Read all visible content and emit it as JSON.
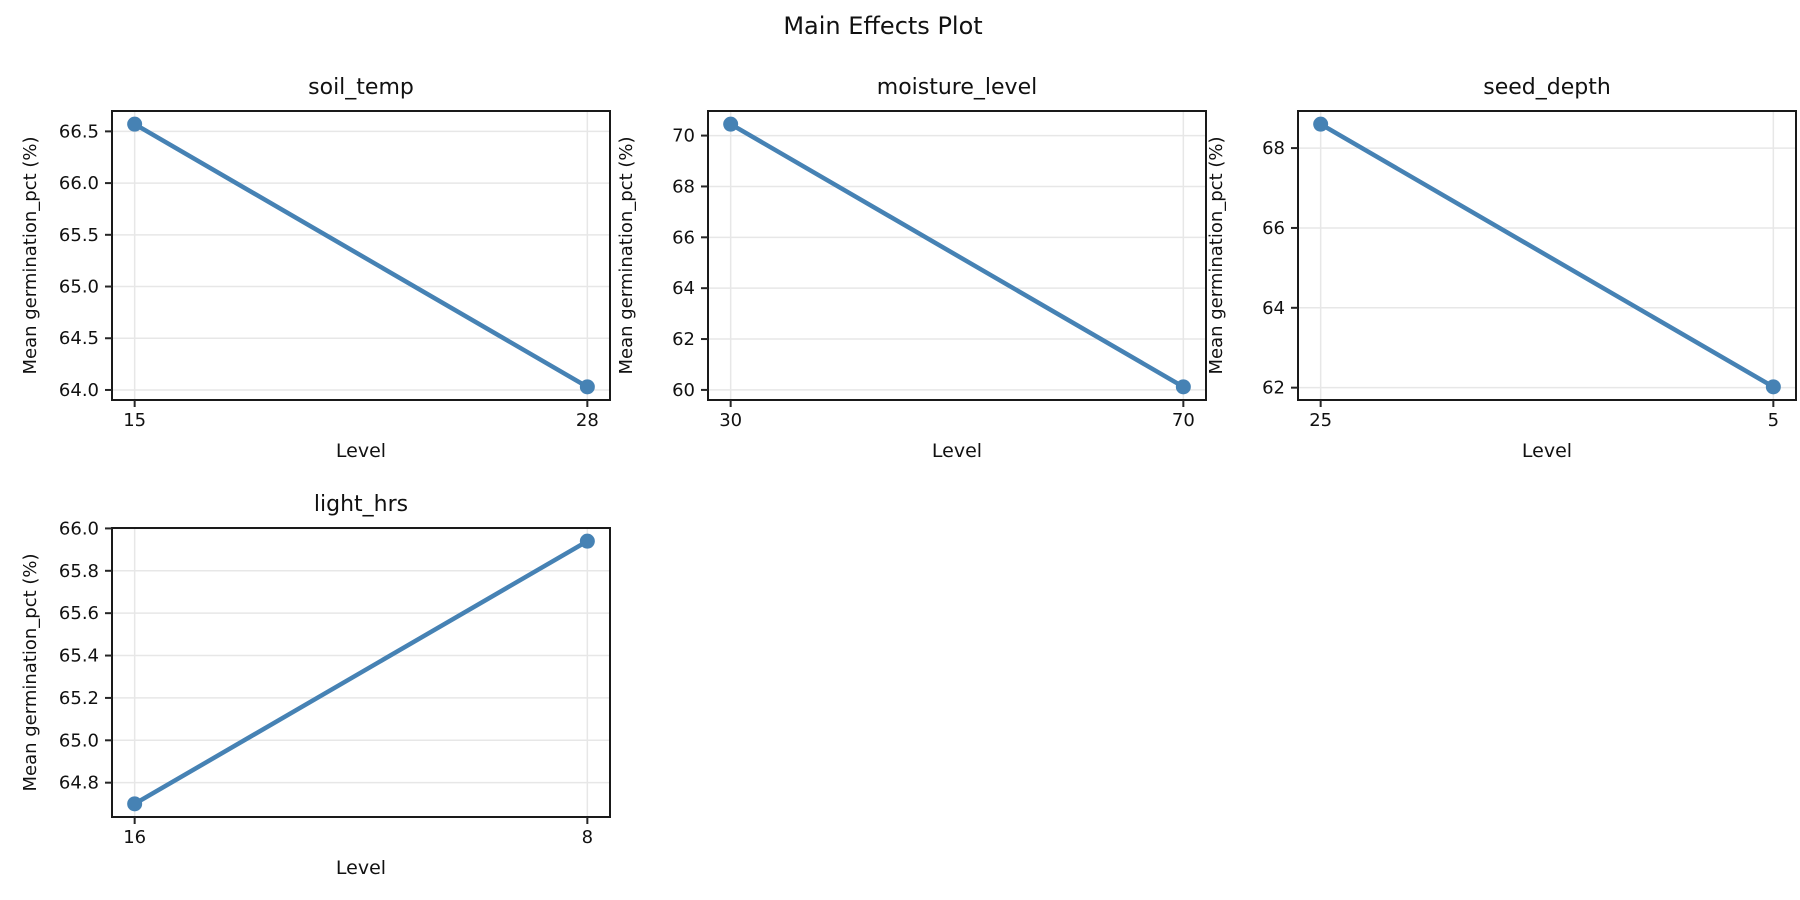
{
  "figure": {
    "suptitle": "Main Effects Plot",
    "colors": {
      "line": "#4682B4",
      "grid": "#e7e7e7",
      "spine": "#1a1a1a",
      "tick": "#262626",
      "text": "#111111",
      "background": "#ffffff"
    }
  },
  "chart_data": [
    {
      "type": "line",
      "title": "soil_temp",
      "xlabel": "Level",
      "ylabel": "Mean germination_pct (%)",
      "categories": [
        "15",
        "28"
      ],
      "values": [
        66.57,
        64.03
      ],
      "yticks": [
        64.0,
        64.5,
        65.0,
        65.5,
        66.0,
        66.5
      ],
      "ytick_labels": [
        "64.0",
        "64.5",
        "65.0",
        "65.5",
        "66.0",
        "66.5"
      ],
      "ylim": [
        63.903,
        66.697
      ],
      "grid": true,
      "legend": null
    },
    {
      "type": "line",
      "title": "moisture_level",
      "xlabel": "Level",
      "ylabel": "Mean germination_pct (%)",
      "categories": [
        "30",
        "70"
      ],
      "values": [
        70.45,
        60.12
      ],
      "yticks": [
        60,
        62,
        64,
        66,
        68,
        70
      ],
      "ytick_labels": [
        "60",
        "62",
        "64",
        "66",
        "68",
        "70"
      ],
      "ylim": [
        59.6035,
        70.9665
      ],
      "grid": true,
      "legend": null
    },
    {
      "type": "line",
      "title": "seed_depth",
      "xlabel": "Level",
      "ylabel": "Mean germination_pct (%)",
      "categories": [
        "25",
        "5"
      ],
      "values": [
        68.6,
        62.02
      ],
      "yticks": [
        62,
        64,
        66,
        68
      ],
      "ytick_labels": [
        "62",
        "64",
        "66",
        "68"
      ],
      "ylim": [
        61.691,
        68.929
      ],
      "grid": true,
      "legend": null
    },
    {
      "type": "line",
      "title": "light_hrs",
      "xlabel": "Level",
      "ylabel": "Mean germination_pct (%)",
      "categories": [
        "16",
        "8"
      ],
      "values": [
        64.7,
        65.94
      ],
      "yticks": [
        64.8,
        65.0,
        65.2,
        65.4,
        65.6,
        65.8,
        66.0
      ],
      "ytick_labels": [
        "64.8",
        "65.0",
        "65.2",
        "65.4",
        "65.6",
        "65.8",
        "66.0"
      ],
      "ylim": [
        64.638,
        66.002
      ],
      "grid": true,
      "legend": null
    }
  ]
}
